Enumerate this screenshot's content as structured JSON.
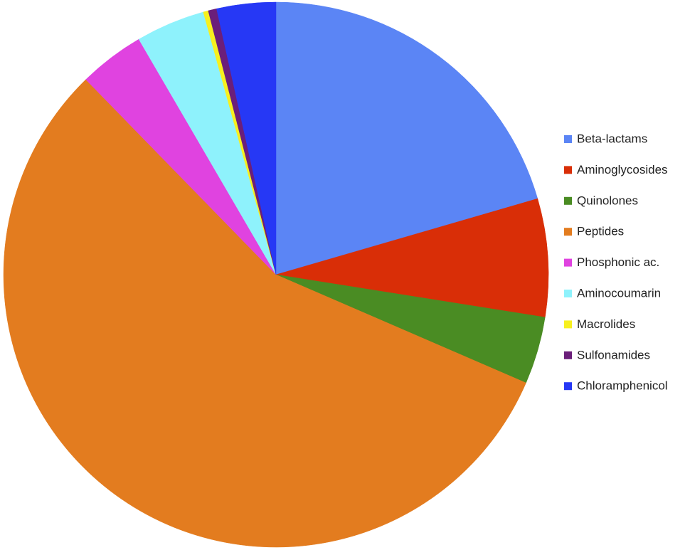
{
  "chart_data": {
    "type": "pie",
    "categories": [
      "Beta-lactams",
      "Aminoglycosides",
      "Quinolones",
      "Peptides",
      "Phosphonic ac.",
      "Aminocoumarin",
      "Macrolides",
      "Sulfonamides",
      "Chloramphenicol"
    ],
    "values": [
      20.5,
      7,
      4,
      56.2,
      3.9,
      4.1,
      0.3,
      0.5,
      3.5
    ],
    "colors": [
      "#5b85f5",
      "#d92e07",
      "#4a8c23",
      "#e37c1f",
      "#e043e0",
      "#8ef2fc",
      "#f7f01e",
      "#6b1f7a",
      "#2638f5"
    ],
    "legend": "right"
  }
}
